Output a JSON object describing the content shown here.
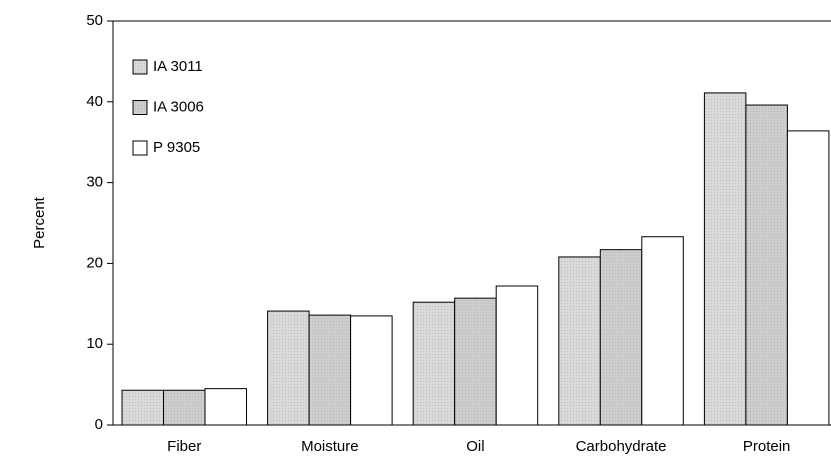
{
  "chart_data": {
    "type": "bar",
    "y_label": "Percent",
    "categories": [
      "Fiber",
      "Moisture",
      "Oil",
      "Carbohydrate",
      "Protein"
    ],
    "series": [
      {
        "name": "IA 3011",
        "color": "#d9d9d9",
        "values": [
          4.3,
          14.1,
          15.2,
          20.8,
          41.1
        ]
      },
      {
        "name": "IA 3006",
        "color": "#cdcdcd",
        "values": [
          4.3,
          13.6,
          15.7,
          21.7,
          39.6
        ]
      },
      {
        "name": "P 9305",
        "color": "#ffffff",
        "values": [
          4.5,
          13.5,
          17.2,
          23.3,
          36.4
        ]
      }
    ],
    "ylim": [
      0,
      50
    ],
    "yticks": [
      0,
      10,
      20,
      30,
      40,
      50
    ],
    "legend": "upper left"
  }
}
